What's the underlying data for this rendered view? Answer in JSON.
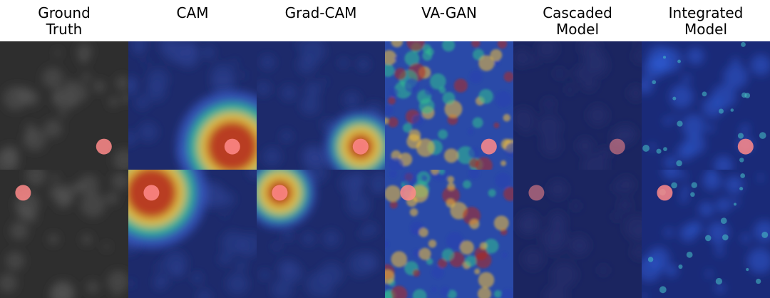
{
  "columns": [
    {
      "id": "ground-truth",
      "label_lines": [
        "Ground",
        "Truth"
      ],
      "base": "#2e2e2e",
      "tint": "#555555",
      "style": "noise"
    },
    {
      "id": "cam",
      "label_lines": [
        "CAM"
      ],
      "base": "#1d2a6b",
      "tint": "#2b3f8e",
      "style": "blob"
    },
    {
      "id": "grad-cam",
      "label_lines": [
        "Grad-CAM"
      ],
      "base": "#1d2a6b",
      "tint": "#2b3f8e",
      "style": "blob-small"
    },
    {
      "id": "va-gan",
      "label_lines": [
        "VA-GAN"
      ],
      "base": "#2a4aa8",
      "tint": "#3cae6a",
      "style": "speckle"
    },
    {
      "id": "cascaded-model",
      "label_lines": [
        "Cascaded",
        "Model"
      ],
      "base": "#1b2560",
      "tint": "#24306f",
      "style": "flat"
    },
    {
      "id": "integrated-model",
      "label_lines": [
        "Integrated",
        "Model"
      ],
      "base": "#1a2a78",
      "tint": "#2e5ad0",
      "style": "veins"
    }
  ],
  "rows": [
    {
      "marker": {
        "cx": 0.81,
        "cy": 0.82
      }
    },
    {
      "marker": {
        "cx": 0.18,
        "cy": 0.18
      }
    }
  ],
  "colors": {
    "marker": "#ff8a8a",
    "heat_hot": "#b3261e",
    "heat_mid": "#f2c038",
    "heat_cool": "#2fbf8f"
  }
}
